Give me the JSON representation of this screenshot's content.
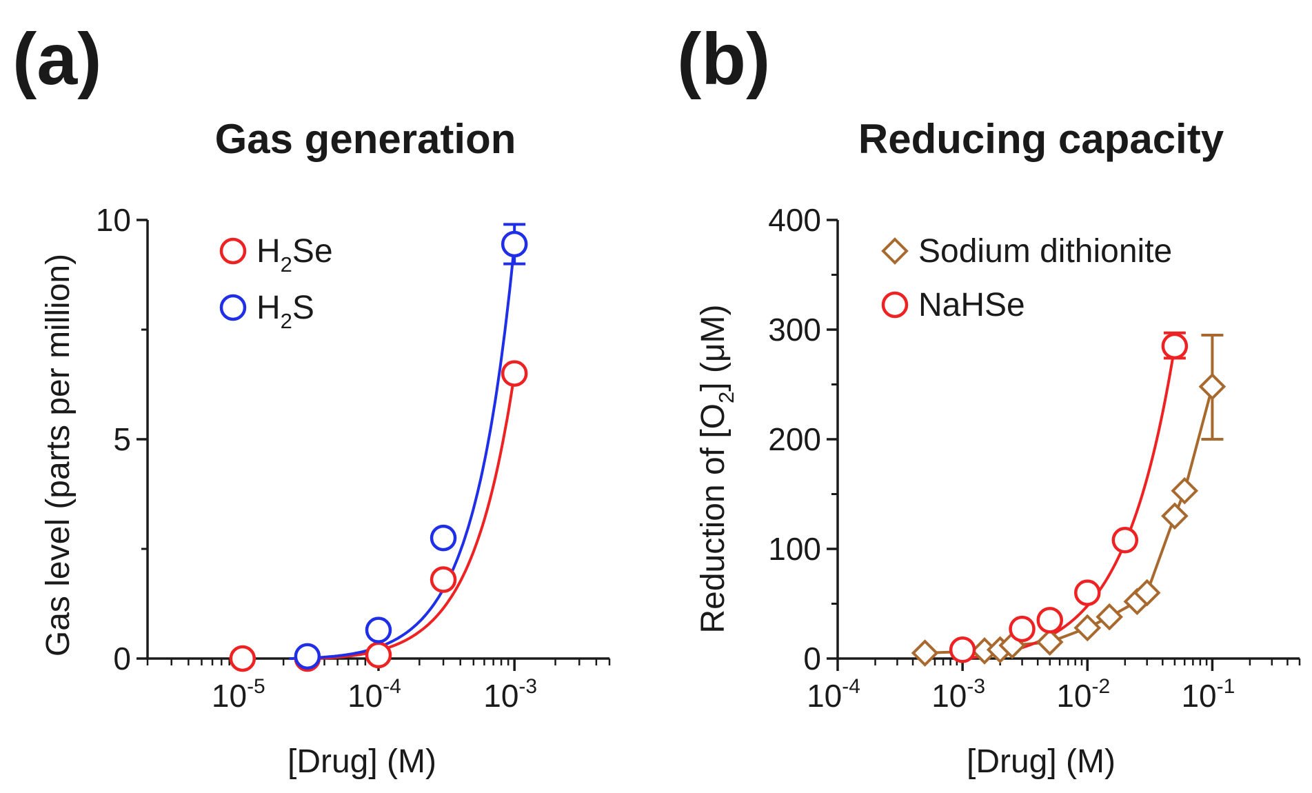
{
  "chart_data": [
    {
      "panel": "(a)",
      "type": "scatter",
      "title": "Gas generation",
      "xlabel": "[Drug] (M)",
      "ylabel": "Gas level (parts per million)",
      "x_scale": "log",
      "xlim": [
        2e-06,
        0.005
      ],
      "ylim": [
        0,
        10
      ],
      "x_tick_labels": [
        {
          "base": "10",
          "exp": "-5",
          "value": 1e-05
        },
        {
          "base": "10",
          "exp": "-4",
          "value": 0.0001
        },
        {
          "base": "10",
          "exp": "-3",
          "value": 0.001
        }
      ],
      "y_ticks": [
        0,
        5,
        10
      ],
      "y_tick_labels": [
        "0",
        "5",
        "10"
      ],
      "legend": [
        {
          "name_main": "H",
          "name_sub": "2",
          "name_rest": "Se",
          "color": "#ee2222",
          "marker": "circle"
        },
        {
          "name_main": "H",
          "name_sub": "2",
          "name_rest": "S",
          "color": "#1f2fe8",
          "marker": "circle"
        }
      ],
      "series": [
        {
          "name": "H2Se",
          "color": "#ee2222",
          "marker": "circle",
          "x": [
            1e-05,
            3e-05,
            0.0001,
            0.0003,
            0.001
          ],
          "y": [
            0,
            0,
            0.08,
            1.8,
            6.5
          ],
          "curve": {
            "A": 6.5,
            "a0": 3.2e-05,
            "p": 1.35
          },
          "errors": []
        },
        {
          "name": "H2S",
          "color": "#1f2fe8",
          "marker": "circle",
          "x": [
            3e-05,
            0.0001,
            0.0003,
            0.001
          ],
          "y": [
            0.05,
            0.65,
            2.75,
            9.45
          ],
          "curve": {
            "A": 9.45,
            "a0": 2.2e-05,
            "p": 1.42
          },
          "errors": [
            {
              "x": 0.001,
              "low": 9.0,
              "high": 9.9
            }
          ]
        }
      ]
    },
    {
      "panel": "(b)",
      "type": "scatter",
      "title": "Reducing capacity",
      "xlabel": "[Drug] (M)",
      "ylabel_pre": "Reduction of [O",
      "ylabel_sub": "2",
      "ylabel_post": "] (μM)",
      "x_scale": "log",
      "xlim": [
        0.0001,
        0.5
      ],
      "ylim": [
        0,
        400
      ],
      "x_tick_labels": [
        {
          "base": "10",
          "exp": "-4",
          "value": 0.0001
        },
        {
          "base": "10",
          "exp": "-3",
          "value": 0.001
        },
        {
          "base": "10",
          "exp": "-2",
          "value": 0.01
        },
        {
          "base": "10",
          "exp": "-1",
          "value": 0.1
        }
      ],
      "y_ticks": [
        0,
        100,
        200,
        300,
        400
      ],
      "y_tick_labels": [
        "0",
        "100",
        "200",
        "300",
        "400"
      ],
      "legend": [
        {
          "name": "Sodium dithionite",
          "color": "#a8692e",
          "marker": "diamond"
        },
        {
          "name": "NaHSe",
          "color": "#ee2222",
          "marker": "circle"
        }
      ],
      "series": [
        {
          "name": "Sodium dithionite",
          "color": "#a8692e",
          "marker": "diamond",
          "line": "connect",
          "x": [
            0.0005,
            0.0015,
            0.002,
            0.0025,
            0.005,
            0.01,
            0.015,
            0.025,
            0.03,
            0.05,
            0.06,
            0.1
          ],
          "y": [
            5,
            7,
            8,
            12,
            15,
            28,
            38,
            52,
            60,
            130,
            153,
            248
          ],
          "errors": [
            {
              "x": 0.1,
              "low": 200,
              "high": 295
            }
          ]
        },
        {
          "name": "NaHSe",
          "color": "#ee2222",
          "marker": "circle",
          "line": "smooth",
          "x": [
            0.001,
            0.003,
            0.005,
            0.01,
            0.02,
            0.05
          ],
          "y": [
            8,
            27,
            35,
            60,
            108,
            285
          ],
          "curve": {
            "A": 285,
            "a0": 0.001,
            "p": 1.05
          },
          "errors": [
            {
              "x": 0.05,
              "low": 274,
              "high": 297
            }
          ]
        }
      ]
    }
  ]
}
